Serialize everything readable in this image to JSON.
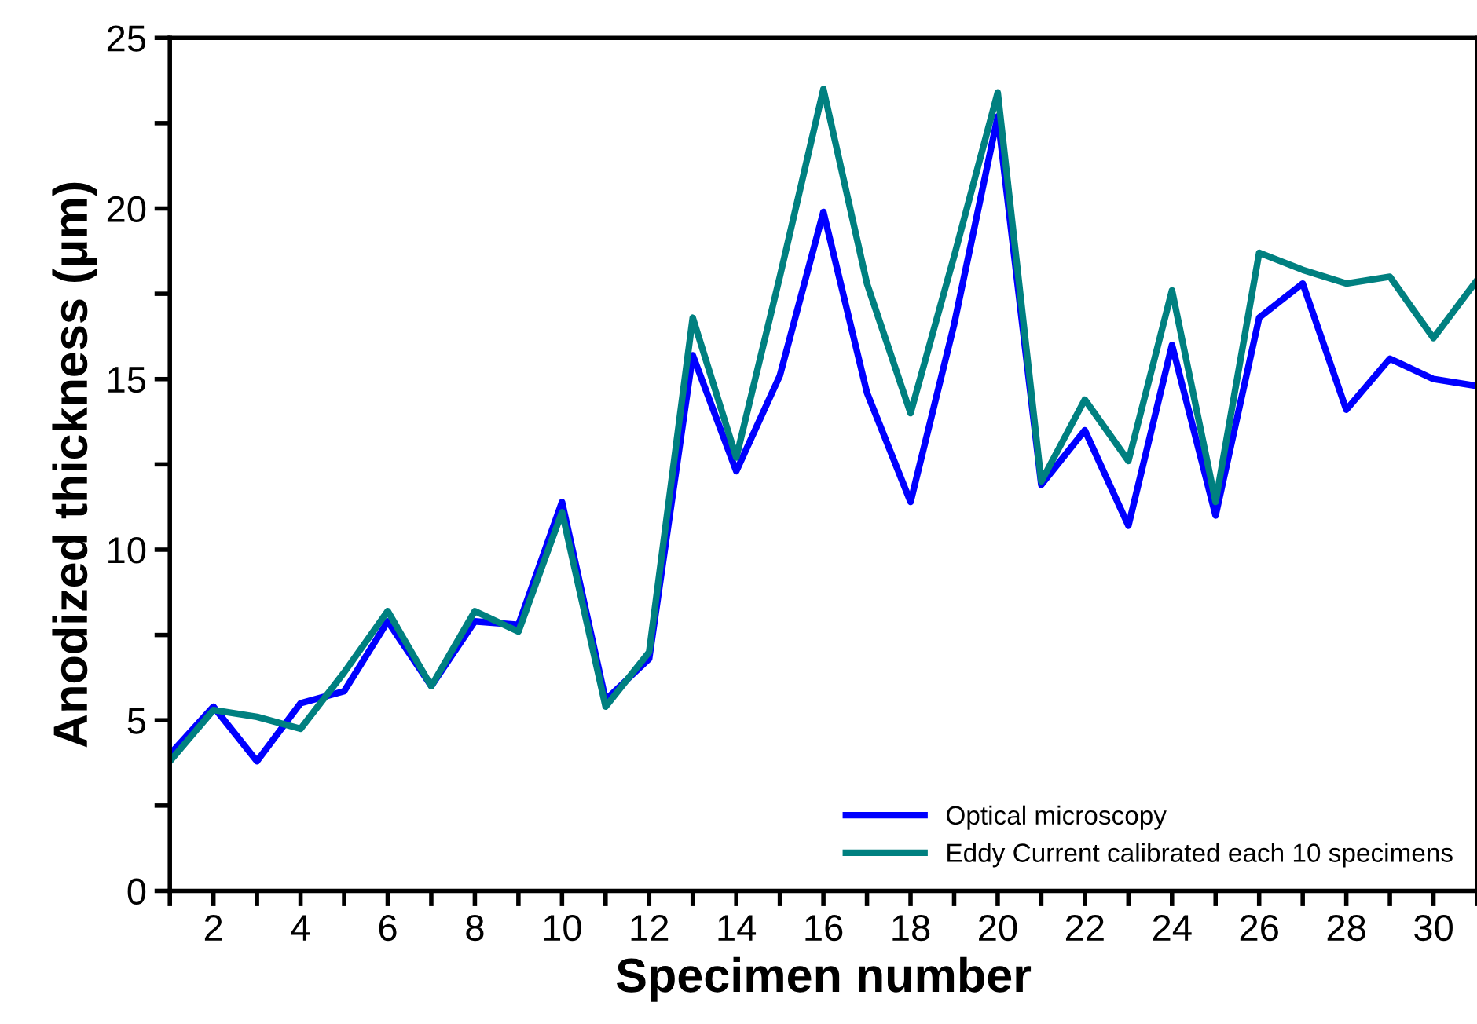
{
  "chart_data": {
    "type": "line",
    "xlabel": "Specimen number",
    "ylabel": "Anodized thickness (μm)",
    "x": [
      1,
      2,
      3,
      4,
      5,
      6,
      7,
      8,
      9,
      10,
      11,
      12,
      13,
      14,
      15,
      16,
      17,
      18,
      19,
      20,
      21,
      22,
      23,
      24,
      25,
      26,
      27,
      28,
      29,
      30,
      31
    ],
    "series": [
      {
        "name": "Optical microscopy",
        "color": "#0000ff",
        "values": [
          4.0,
          5.4,
          3.8,
          5.5,
          5.85,
          7.9,
          6.0,
          7.9,
          7.8,
          11.4,
          5.6,
          6.8,
          15.7,
          12.3,
          15.1,
          19.9,
          14.6,
          11.4,
          16.6,
          22.7,
          11.9,
          13.5,
          10.7,
          16.0,
          11.0,
          16.8,
          17.8,
          14.1,
          15.6,
          15.0,
          14.8
        ]
      },
      {
        "name": "Eddy Current calibrated each 10 specimens",
        "color": "#008080",
        "values": [
          3.8,
          5.3,
          5.1,
          4.75,
          6.4,
          8.2,
          6.0,
          8.2,
          7.6,
          11.1,
          5.4,
          7.0,
          16.8,
          12.7,
          18.0,
          23.5,
          17.8,
          14.0,
          18.6,
          23.4,
          12.0,
          14.4,
          12.6,
          17.6,
          11.4,
          18.7,
          18.2,
          17.8,
          18.0,
          16.2,
          17.9
        ]
      }
    ],
    "xlim": [
      1,
      31
    ],
    "xticks": [
      {
        "value": 1,
        "label": null
      },
      2,
      {
        "value": 3,
        "label": null
      },
      4,
      {
        "value": 5,
        "label": null
      },
      6,
      {
        "value": 7,
        "label": null
      },
      8,
      {
        "value": 9,
        "label": null
      },
      10,
      {
        "value": 11,
        "label": null
      },
      12,
      {
        "value": 13,
        "label": null
      },
      14,
      {
        "value": 15,
        "label": null
      },
      16,
      {
        "value": 17,
        "label": null
      },
      18,
      {
        "value": 19,
        "label": null
      },
      20,
      {
        "value": 21,
        "label": null
      },
      22,
      {
        "value": 23,
        "label": null
      },
      24,
      {
        "value": 25,
        "label": null
      },
      26,
      {
        "value": 27,
        "label": null
      },
      28,
      {
        "value": 29,
        "label": null
      },
      30,
      {
        "value": 31,
        "label": null
      }
    ],
    "ylim": [
      0,
      25
    ],
    "yticks": [
      0,
      {
        "value": 2.5,
        "label": null
      },
      5,
      {
        "value": 7.5,
        "label": null
      },
      10,
      {
        "value": 12.5,
        "label": null
      },
      15,
      {
        "value": 17.5,
        "label": null
      },
      20,
      {
        "value": 22.5,
        "label": null
      },
      25
    ],
    "grid": false,
    "legend": "bottom right",
    "marker": "none",
    "line_style": "solid"
  }
}
